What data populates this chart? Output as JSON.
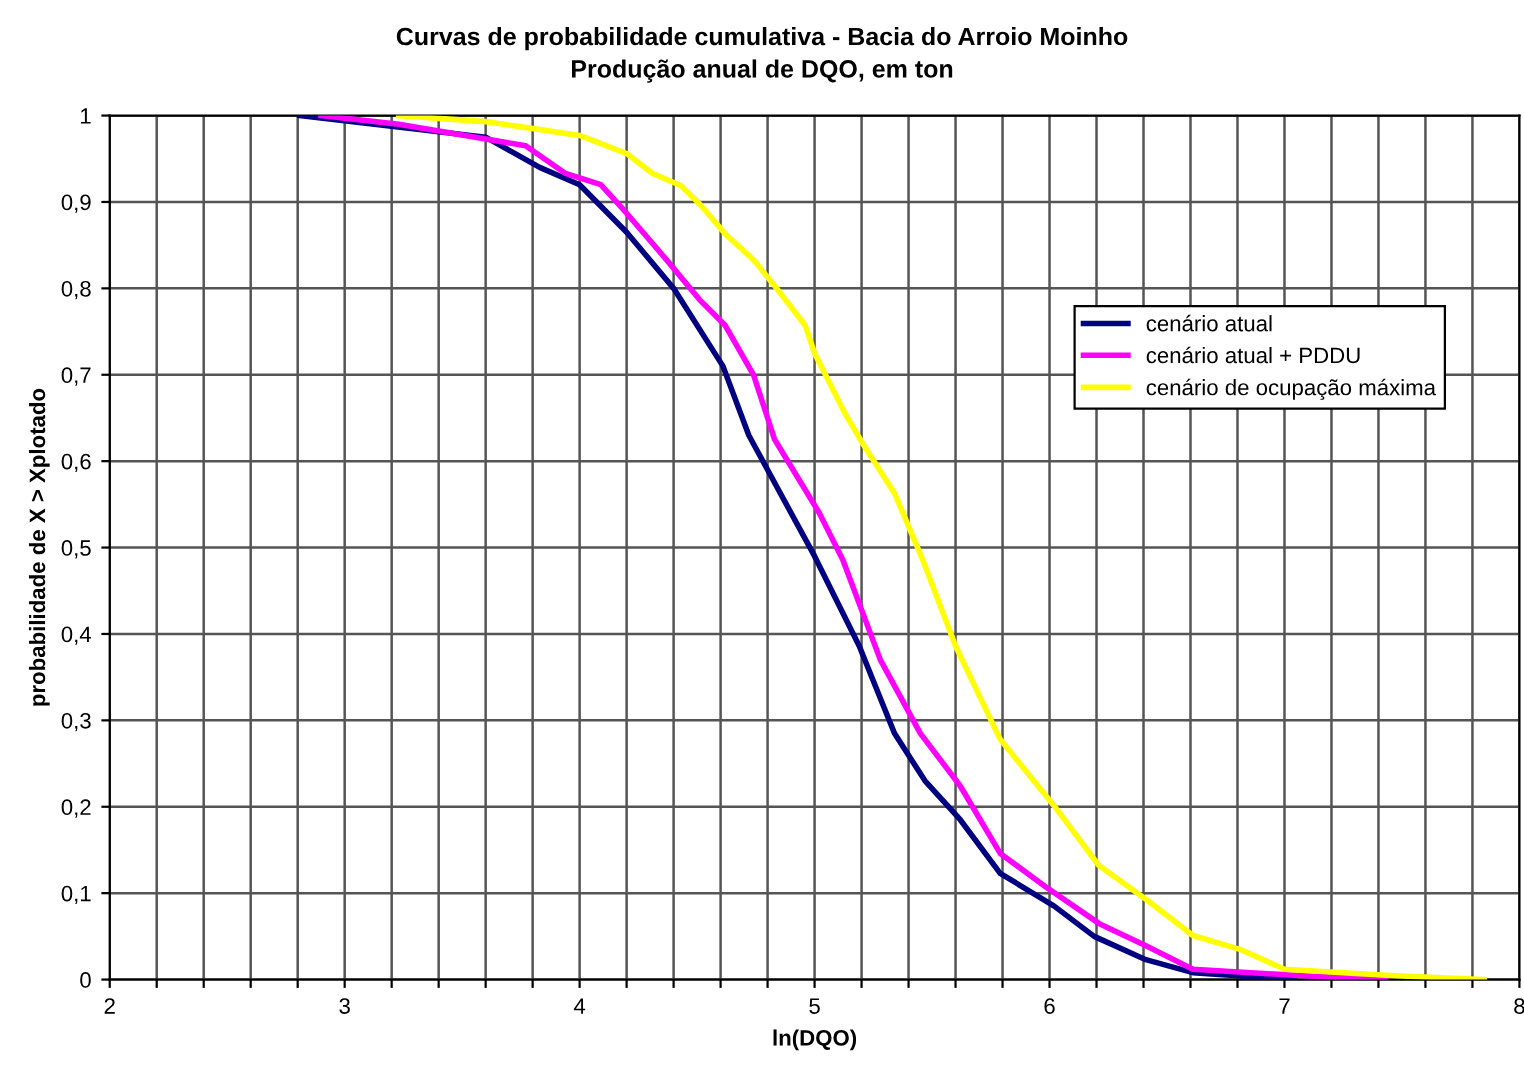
{
  "chart_data": {
    "type": "line",
    "title": "Curvas de probabilidade cumulativa - Bacia do Arroio Moinho",
    "subtitle": "Produção anual de DQO, em ton",
    "xlabel": "ln(DQO)",
    "ylabel": "probabilidade de X > Xplotado",
    "xlim": [
      2,
      8
    ],
    "ylim": [
      0,
      1
    ],
    "xticks": [
      2,
      {
        "value": 2.2,
        "label": null
      },
      {
        "value": 2.4,
        "label": null
      },
      {
        "value": 2.6,
        "label": null
      },
      {
        "value": 2.8,
        "label": null
      },
      3,
      {
        "value": 3.2,
        "label": null
      },
      {
        "value": 3.4,
        "label": null
      },
      {
        "value": 3.6,
        "label": null
      },
      {
        "value": 3.8,
        "label": null
      },
      4,
      {
        "value": 4.2,
        "label": null
      },
      {
        "value": 4.4,
        "label": null
      },
      {
        "value": 4.6,
        "label": null
      },
      {
        "value": 4.8,
        "label": null
      },
      5,
      {
        "value": 5.2,
        "label": null
      },
      {
        "value": 5.4,
        "label": null
      },
      {
        "value": 5.6,
        "label": null
      },
      {
        "value": 5.8,
        "label": null
      },
      6,
      {
        "value": 6.2,
        "label": null
      },
      {
        "value": 6.4,
        "label": null
      },
      {
        "value": 6.6,
        "label": null
      },
      {
        "value": 6.8,
        "label": null
      },
      7,
      {
        "value": 7.2,
        "label": null
      },
      {
        "value": 7.4,
        "label": null
      },
      {
        "value": 7.6,
        "label": null
      },
      {
        "value": 7.8,
        "label": null
      },
      8
    ],
    "yticks": [
      0,
      {
        "value": 0.1,
        "label": "0,1"
      },
      {
        "value": 0.2,
        "label": "0,2"
      },
      {
        "value": 0.3,
        "label": "0,3"
      },
      {
        "value": 0.4,
        "label": "0,4"
      },
      {
        "value": 0.5,
        "label": "0,5"
      },
      {
        "value": 0.6,
        "label": "0,6"
      },
      {
        "value": 0.7,
        "label": "0,7"
      },
      {
        "value": 0.8,
        "label": "0,8"
      },
      {
        "value": 0.9,
        "label": "0,9"
      },
      1
    ],
    "grid": true,
    "legend": "right",
    "marker": "none",
    "line_style": "solid",
    "series": [
      {
        "name": "cenário atual",
        "color": "#000080",
        "x": [
          2.81,
          3.6,
          3.83,
          4.0,
          4.2,
          4.4,
          4.61,
          4.72,
          4.79,
          5.0,
          5.19,
          5.34,
          5.47,
          5.62,
          5.79,
          6.02,
          6.19,
          6.41,
          6.61,
          7.04
        ],
        "values": [
          1.0,
          0.975,
          0.94,
          0.92,
          0.865,
          0.8,
          0.71,
          0.63,
          0.595,
          0.49,
          0.386,
          0.285,
          0.23,
          0.185,
          0.123,
          0.085,
          0.05,
          0.023,
          0.008,
          0.0
        ]
      },
      {
        "name": "cenário atual + PDDU",
        "color": "#ff00ff",
        "x": [
          2.9,
          3.23,
          3.77,
          3.94,
          4.09,
          4.2,
          4.37,
          4.51,
          4.62,
          4.74,
          4.83,
          5.02,
          5.12,
          5.28,
          5.45,
          5.62,
          5.79,
          5.98,
          6.21,
          6.41,
          6.61,
          7.04,
          7.43
        ],
        "values": [
          1.0,
          0.99,
          0.965,
          0.933,
          0.92,
          0.887,
          0.833,
          0.787,
          0.757,
          0.7,
          0.625,
          0.54,
          0.486,
          0.37,
          0.285,
          0.224,
          0.146,
          0.108,
          0.065,
          0.039,
          0.012,
          0.005,
          0.0
        ]
      },
      {
        "name": "cenário de ocupação máxima",
        "color": "#ffff00",
        "x": [
          3.23,
          3.6,
          4.0,
          4.2,
          4.31,
          4.43,
          4.51,
          4.62,
          4.74,
          4.83,
          4.96,
          5.0,
          5.13,
          5.21,
          5.34,
          5.46,
          5.6,
          5.79,
          6.02,
          6.21,
          6.41,
          6.61,
          6.81,
          7.0,
          7.43,
          7.85
        ],
        "values": [
          1.0,
          0.993,
          0.977,
          0.956,
          0.933,
          0.919,
          0.898,
          0.863,
          0.833,
          0.803,
          0.757,
          0.725,
          0.655,
          0.618,
          0.563,
          0.486,
          0.386,
          0.278,
          0.201,
          0.132,
          0.093,
          0.051,
          0.035,
          0.012,
          0.005,
          0.0
        ]
      }
    ]
  }
}
